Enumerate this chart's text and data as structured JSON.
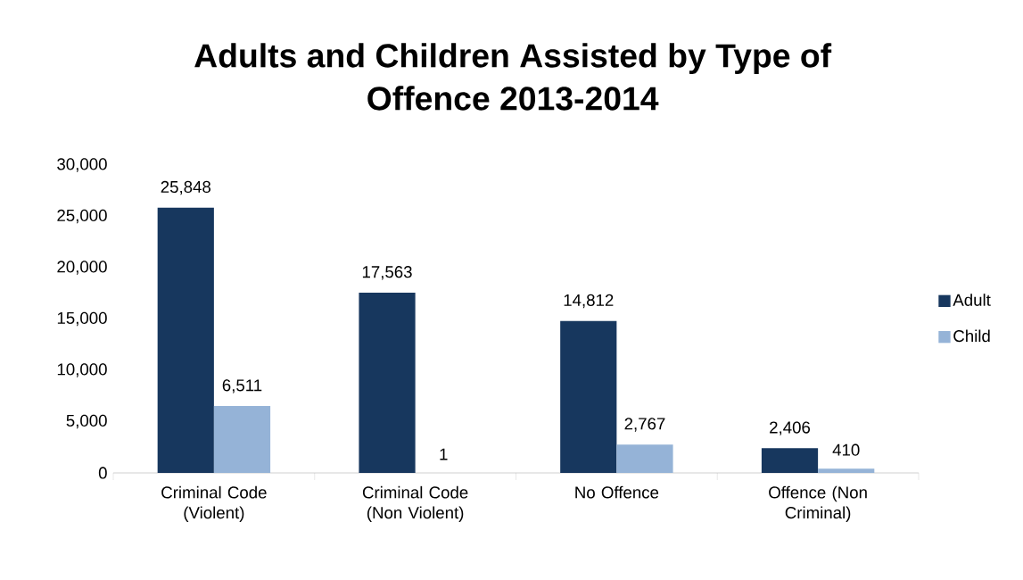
{
  "chart_data": {
    "type": "bar",
    "title": "Adults and Children Assisted by Type of Offence 2013-2014",
    "categories": [
      "Criminal Code (Violent)",
      "Criminal Code (Non Violent)",
      "No Offence",
      "Offence (Non Criminal)"
    ],
    "series": [
      {
        "name": "Adult",
        "color": "#17375e",
        "values": [
          25848,
          17563,
          14812,
          2406
        ],
        "value_labels": [
          "25,848",
          "17,563",
          "14,812",
          "2,406"
        ]
      },
      {
        "name": "Child",
        "color": "#95b3d7",
        "values": [
          6511,
          1,
          2767,
          410
        ],
        "value_labels": [
          "6,511",
          "1",
          "2,767",
          "410"
        ]
      }
    ],
    "ylim": [
      0,
      30000
    ],
    "yticks": [
      0,
      {
        "value": 5000,
        "label": "5,000"
      },
      {
        "value": 10000,
        "label": "10,000"
      },
      {
        "value": 15000,
        "label": "15,000"
      },
      {
        "value": 20000,
        "label": "20,000"
      },
      {
        "value": 25000,
        "label": "25,000"
      },
      {
        "value": 30000,
        "label": "30,000"
      }
    ],
    "grid": false,
    "legend": "right"
  }
}
